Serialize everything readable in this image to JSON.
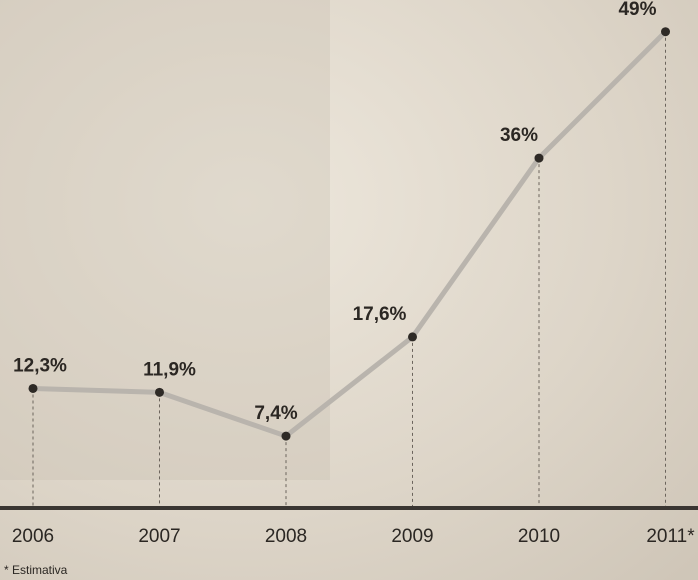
{
  "chart_data": {
    "type": "line",
    "categories": [
      "2006",
      "2007",
      "2008",
      "2009",
      "2010",
      "2011*"
    ],
    "values": [
      12.3,
      11.9,
      7.4,
      17.6,
      36,
      49
    ],
    "value_labels": [
      "12,3%",
      "11,9%",
      "7,4%",
      "17,6%",
      "36%",
      "49%"
    ],
    "color": "#b9b4ad",
    "footnote": "* Estimativa"
  }
}
